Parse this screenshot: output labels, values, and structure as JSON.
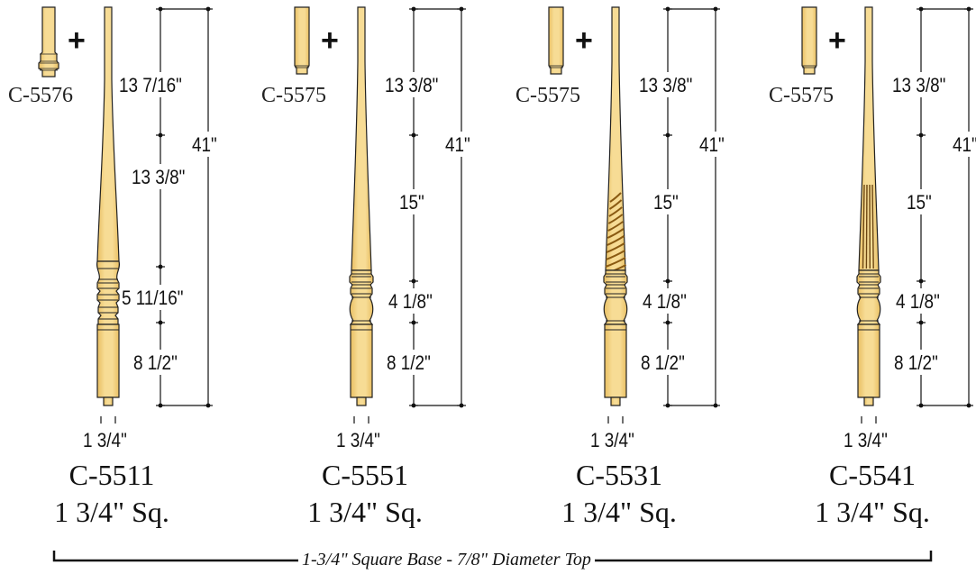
{
  "colors": {
    "wood": "#f7dc95",
    "wood_shade": "#e9bf62",
    "outline": "#222222",
    "line": "#111111"
  },
  "products": [
    {
      "model": "C-5511",
      "size": "1 3/4\" Sq.",
      "kit": "C-5576",
      "plus": "+",
      "base_width": "1 3/4\"",
      "turning": "plain",
      "segments": [
        "13 7/16\"",
        "13 3/8\"",
        "5 11/16\"",
        "8 1/2\""
      ],
      "total": "41\""
    },
    {
      "model": "C-5551",
      "size": "1 3/4\" Sq.",
      "kit": "C-5575",
      "plus": "+",
      "base_width": "1 3/4\"",
      "turning": "plain",
      "segments": [
        "13 3/8\"",
        "15\"",
        "4 1/8\"",
        "8 1/2\""
      ],
      "total": "41\""
    },
    {
      "model": "C-5531",
      "size": "1 3/4\" Sq.",
      "kit": "C-5575",
      "plus": "+",
      "base_width": "1 3/4\"",
      "turning": "twist",
      "segments": [
        "13 3/8\"",
        "15\"",
        "4 1/8\"",
        "8 1/2\""
      ],
      "total": "41\""
    },
    {
      "model": "C-5541",
      "size": "1 3/4\" Sq.",
      "kit": "C-5575",
      "plus": "+",
      "base_width": "1 3/4\"",
      "turning": "fluted",
      "segments": [
        "13 3/8\"",
        "15\"",
        "4 1/8\"",
        "8 1/2\""
      ],
      "total": "41\""
    }
  ],
  "footer": {
    "label": "1-3/4\" Square Base - 7/8\" Diameter Top"
  }
}
